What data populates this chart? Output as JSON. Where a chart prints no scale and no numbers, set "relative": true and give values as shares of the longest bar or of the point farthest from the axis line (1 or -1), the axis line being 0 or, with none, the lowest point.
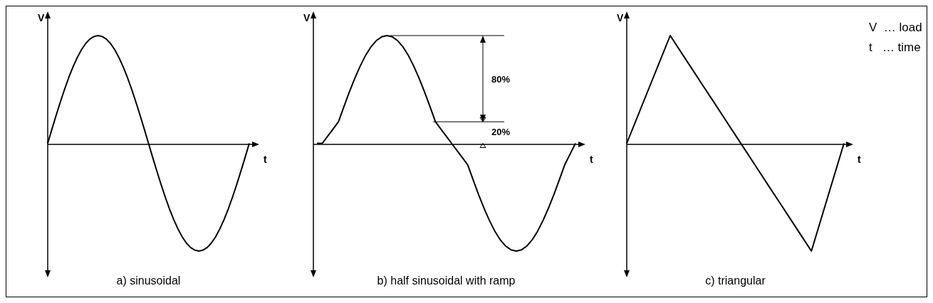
{
  "chart_data": [
    {
      "type": "line",
      "title": "a) sinusoidal",
      "xlabel": "t",
      "ylabel": "V",
      "relative": true,
      "color": "#000000",
      "categories": [
        null,
        null,
        null,
        null,
        null,
        null,
        null,
        null,
        null,
        null,
        null,
        null,
        null,
        null,
        null,
        null,
        null,
        null,
        null,
        null,
        null,
        null,
        null,
        null,
        null,
        null,
        null,
        null,
        null,
        null,
        null,
        null,
        null,
        null,
        null,
        null,
        null,
        null,
        null,
        null,
        null,
        null,
        null,
        null,
        null,
        null,
        null,
        null,
        null
      ],
      "values": [
        0,
        0.131,
        0.259,
        0.383,
        0.5,
        0.609,
        0.707,
        0.793,
        0.866,
        0.924,
        0.966,
        0.991,
        1,
        0.991,
        0.966,
        0.924,
        0.866,
        0.793,
        0.707,
        0.609,
        0.5,
        0.383,
        0.259,
        0.131,
        0,
        -0.131,
        -0.259,
        -0.383,
        -0.5,
        -0.609,
        -0.707,
        -0.793,
        -0.866,
        -0.924,
        -0.966,
        -0.991,
        -1,
        -0.991,
        -0.966,
        -0.924,
        -0.866,
        -0.793,
        -0.707,
        -0.609,
        -0.5,
        -0.383,
        -0.259,
        -0.131,
        0
      ]
    },
    {
      "type": "line",
      "title": "b) half sinusoidal with ramp",
      "xlabel": "t",
      "ylabel": "V",
      "relative": true,
      "color": "#000000",
      "annotations": [
        "80%",
        "20%"
      ],
      "categories": [
        null,
        null,
        null,
        null,
        null,
        null,
        null,
        null,
        null,
        null,
        null,
        null,
        null,
        null,
        null,
        null,
        null,
        null,
        null,
        null,
        null,
        null,
        null,
        null,
        null,
        null,
        null,
        null,
        null,
        null,
        null,
        null,
        null,
        null,
        null,
        null,
        null,
        null,
        null,
        null,
        null,
        null,
        null,
        null,
        null,
        null,
        null,
        null,
        null
      ],
      "values": [
        0,
        0,
        0.067,
        0.133,
        0.2,
        0.339,
        0.474,
        0.6,
        0.714,
        0.813,
        0.893,
        0.952,
        0.988,
        1,
        0.988,
        0.952,
        0.893,
        0.813,
        0.714,
        0.6,
        0.474,
        0.339,
        0.2,
        0.133,
        0.067,
        0,
        -0.067,
        -0.133,
        -0.2,
        -0.339,
        -0.474,
        -0.6,
        -0.714,
        -0.813,
        -0.893,
        -0.952,
        -0.988,
        -1,
        -0.988,
        -0.952,
        -0.893,
        -0.813,
        -0.714,
        -0.6,
        -0.474,
        -0.339,
        -0.2,
        -0.1,
        0
      ]
    },
    {
      "type": "line",
      "title": "c) triangular",
      "xlabel": "t",
      "ylabel": "V",
      "relative": true,
      "color": "#000000",
      "annotations": [
        "V  … load",
        "t   … time"
      ],
      "categories": [
        null,
        null,
        null,
        null,
        null,
        null,
        null,
        null,
        null,
        null,
        null,
        null,
        null,
        null,
        null,
        null,
        null,
        null,
        null,
        null,
        null
      ],
      "values": [
        0,
        0.25,
        0.5,
        0.75,
        1,
        0.846,
        0.692,
        0.538,
        0.385,
        0.231,
        0.077,
        -0.077,
        -0.231,
        -0.385,
        -0.538,
        -0.692,
        -0.846,
        -1,
        -0.667,
        -0.333,
        0
      ]
    }
  ]
}
